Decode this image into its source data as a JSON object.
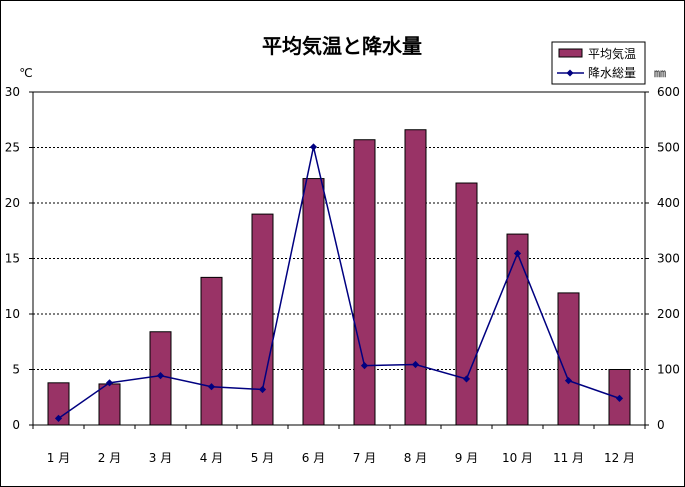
{
  "chart_data": {
    "type": "bar+line",
    "title": "平均気温と降水量",
    "left_unit": "℃",
    "right_unit": "㎜",
    "categories": [
      "1 月",
      "2 月",
      "3 月",
      "4 月",
      "5 月",
      "6 月",
      "7 月",
      "8 月",
      "9 月",
      "10 月",
      "11 月",
      "12 月"
    ],
    "y_left": {
      "min": 0,
      "max": 30,
      "ticks": [
        "0",
        "5",
        "10",
        "15",
        "20",
        "25",
        "30"
      ]
    },
    "y_right": {
      "min": 0,
      "max": 600,
      "ticks": [
        "0",
        "100",
        "200",
        "300",
        "400",
        "500",
        "600"
      ]
    },
    "grid": true,
    "legend_position": "top-right",
    "series": [
      {
        "name": "平均気温",
        "kind": "bar",
        "axis": "left",
        "color": "#993366",
        "values": [
          3.8,
          3.7,
          8.4,
          13.3,
          19.0,
          22.2,
          25.7,
          26.6,
          21.8,
          17.2,
          11.9,
          5.0
        ]
      },
      {
        "name": "降水総量",
        "kind": "line",
        "axis": "right",
        "color": "#000080",
        "values": [
          12,
          76,
          89,
          69,
          64,
          501,
          107,
          109,
          83,
          309,
          80,
          48
        ]
      }
    ]
  }
}
